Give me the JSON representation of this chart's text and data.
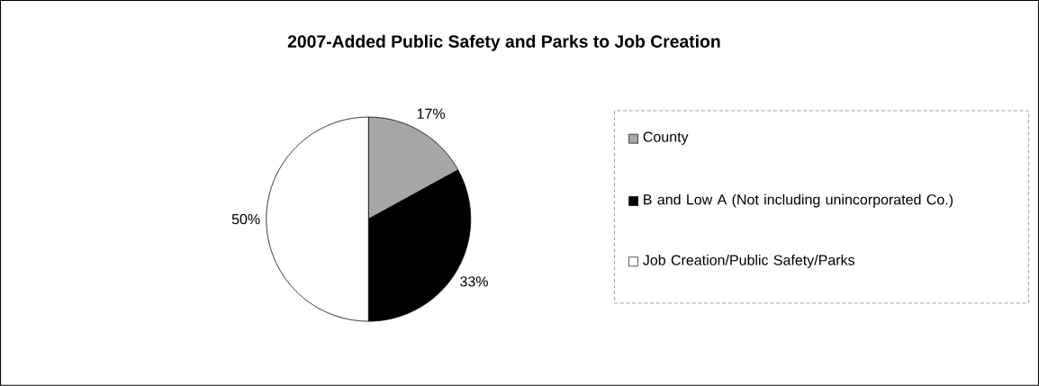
{
  "chart_data": {
    "type": "pie",
    "title": "2007-Added Public Safety and Parks to Job Creation",
    "categories": [
      "County",
      "B and Low A (Not including unincorporated Co.)",
      "Job Creation/Public Safety/Parks"
    ],
    "values": [
      17,
      33,
      50
    ],
    "colors": [
      "#a6a6a6",
      "#000000",
      "#ffffff"
    ],
    "value_labels": [
      "17%",
      "33%",
      "50%"
    ],
    "legend": "right"
  }
}
